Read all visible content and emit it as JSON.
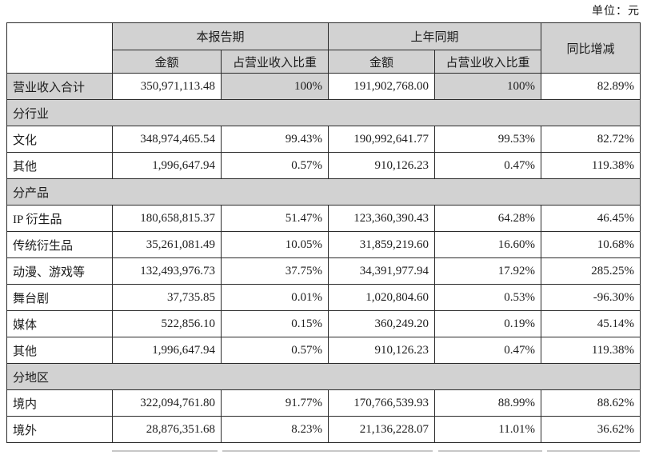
{
  "meta": {
    "unit_label": "单位：元"
  },
  "colors": {
    "header_bg": "#d2d2d2",
    "section_bg": "#d2d2d2",
    "border": "#2b2b2b",
    "page_bg": "#ffffff"
  },
  "table": {
    "header": {
      "current_period": "本报告期",
      "prior_period": "上年同期",
      "yoy_change": "同比增减",
      "amount_current": "金额",
      "pct_current": "占营业收入比重",
      "amount_prior": "金额",
      "pct_prior": "占营业收入比重"
    },
    "rows": [
      {
        "type": "data",
        "highlight": true,
        "label": "营业收入合计",
        "cur_amount": "350,971,113.48",
        "cur_pct": "100%",
        "prior_amount": "191,902,768.00",
        "prior_pct": "100%",
        "yoy": "82.89%"
      },
      {
        "type": "section",
        "label": "分行业"
      },
      {
        "type": "data",
        "label": "文化",
        "cur_amount": "348,974,465.54",
        "cur_pct": "99.43%",
        "prior_amount": "190,992,641.77",
        "prior_pct": "99.53%",
        "yoy": "82.72%"
      },
      {
        "type": "data",
        "label": "其他",
        "cur_amount": "1,996,647.94",
        "cur_pct": "0.57%",
        "prior_amount": "910,126.23",
        "prior_pct": "0.47%",
        "yoy": "119.38%"
      },
      {
        "type": "section",
        "label": "分产品"
      },
      {
        "type": "data",
        "label": "IP 衍生品",
        "cur_amount": "180,658,815.37",
        "cur_pct": "51.47%",
        "prior_amount": "123,360,390.43",
        "prior_pct": "64.28%",
        "yoy": "46.45%"
      },
      {
        "type": "data",
        "label": "传统衍生品",
        "cur_amount": "35,261,081.49",
        "cur_pct": "10.05%",
        "prior_amount": "31,859,219.60",
        "prior_pct": "16.60%",
        "yoy": "10.68%"
      },
      {
        "type": "data",
        "label": "动漫、游戏等",
        "cur_amount": "132,493,976.73",
        "cur_pct": "37.75%",
        "prior_amount": "34,391,977.94",
        "prior_pct": "17.92%",
        "yoy": "285.25%"
      },
      {
        "type": "data",
        "label": "舞台剧",
        "cur_amount": "37,735.85",
        "cur_pct": "0.01%",
        "prior_amount": "1,020,804.60",
        "prior_pct": "0.53%",
        "yoy": "-96.30%"
      },
      {
        "type": "data",
        "label": "媒体",
        "cur_amount": "522,856.10",
        "cur_pct": "0.15%",
        "prior_amount": "360,249.20",
        "prior_pct": "0.19%",
        "yoy": "45.14%"
      },
      {
        "type": "data",
        "label": "其他",
        "cur_amount": "1,996,647.94",
        "cur_pct": "0.57%",
        "prior_amount": "910,126.23",
        "prior_pct": "0.47%",
        "yoy": "119.38%"
      },
      {
        "type": "section",
        "label": "分地区"
      },
      {
        "type": "data",
        "label": "境内",
        "cur_amount": "322,094,761.80",
        "cur_pct": "91.77%",
        "prior_amount": "170,766,539.93",
        "prior_pct": "88.99%",
        "yoy": "88.62%"
      },
      {
        "type": "data",
        "label": "境外",
        "cur_amount": "28,876,351.68",
        "cur_pct": "8.23%",
        "prior_amount": "21,136,228.07",
        "prior_pct": "11.01%",
        "yoy": "36.62%"
      }
    ]
  }
}
